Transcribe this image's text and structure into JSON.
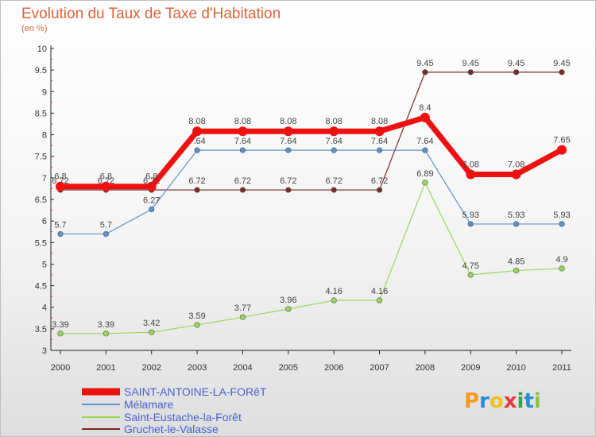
{
  "title": "Evolution du Taux de Taxe d'Habitation",
  "subtitle": "(en %)",
  "logo": {
    "letters": [
      "P",
      "r",
      "o",
      "x",
      "i",
      "t",
      "i"
    ],
    "colors": [
      "#f39a1e",
      "#2b8bd6",
      "#f3c21e",
      "#e03c3c",
      "#3aa64b",
      "#2b8bd6",
      "#8ac43f"
    ]
  },
  "chart_data": {
    "type": "line",
    "x": [
      "2000",
      "2001",
      "2002",
      "2003",
      "2004",
      "2005",
      "2006",
      "2007",
      "2008",
      "2009",
      "2010",
      "2011"
    ],
    "ylim": [
      3,
      10
    ],
    "yticks": [
      "3",
      "3.5",
      "4",
      "4.5",
      "5",
      "5.5",
      "6",
      "6.5",
      "7",
      "7.5",
      "8",
      "8.5",
      "9",
      "9.5",
      "10"
    ],
    "grid": false,
    "legend_position": "bottom-left",
    "series": [
      {
        "name": "Gruchet-le-Valasse",
        "color": "#7a2a2a",
        "width": 1.2,
        "values": [
          6.72,
          6.72,
          6.72,
          6.72,
          6.72,
          6.72,
          6.72,
          6.72,
          9.45,
          9.45,
          9.45,
          9.45
        ],
        "labels": [
          "6.72",
          "6.72",
          "6.72",
          "6.72",
          "6.72",
          "6.72",
          "6.72",
          "6.72",
          "9.45",
          "9.45",
          "9.45",
          "9.45"
        ]
      },
      {
        "name": "Saint-Eustache-la-Forêt",
        "color": "#9ad65a",
        "width": 1.2,
        "values": [
          3.39,
          3.39,
          3.42,
          3.59,
          3.77,
          3.96,
          4.16,
          4.16,
          6.89,
          4.75,
          4.85,
          4.9
        ],
        "labels": [
          "3.39",
          "3.39",
          "3.42",
          "3.59",
          "3.77",
          "3.96",
          "4.16",
          "4.16",
          "6.89",
          "4.75",
          "4.85",
          "4.9"
        ]
      },
      {
        "name": "Mélamare",
        "color": "#5b93cf",
        "width": 1.2,
        "values": [
          5.7,
          5.7,
          6.27,
          7.64,
          7.64,
          7.64,
          7.64,
          7.64,
          7.64,
          5.93,
          5.93,
          5.93
        ],
        "labels": [
          "5.7",
          "5.7",
          "6.27",
          "7.64",
          "7.64",
          "7.64",
          "7.64",
          "7.64",
          "7.64",
          "5.93",
          "5.93",
          "5.93"
        ]
      },
      {
        "name": "SAINT-ANTOINE-LA-FORêT",
        "color": "#ee1111",
        "width": 7,
        "values": [
          6.8,
          6.8,
          6.8,
          8.08,
          8.08,
          8.08,
          8.08,
          8.08,
          8.4,
          7.08,
          7.08,
          7.65
        ],
        "labels": [
          "6.8",
          "6.8",
          "6.8",
          "8.08",
          "8.08",
          "8.08",
          "8.08",
          "8.08",
          "8.4",
          "7.08",
          "7.08",
          "7.65"
        ]
      }
    ],
    "legend_order": [
      "SAINT-ANTOINE-LA-FORêT",
      "Mélamare",
      "Saint-Eustache-la-Forêt",
      "Gruchet-le-Valasse"
    ]
  }
}
